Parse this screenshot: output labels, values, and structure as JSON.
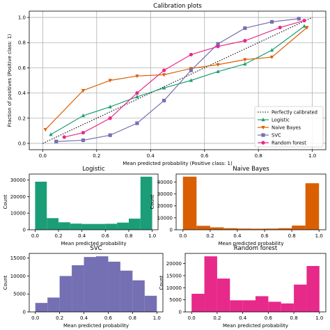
{
  "chart_data": [
    {
      "id": "calibration",
      "type": "line",
      "title": "Calibration plots",
      "xlabel": "Mean predicted probability (Positive class: 1)",
      "ylabel": "Fraction of positives (Positive class: 1)",
      "xlim": [
        -0.05,
        1.05
      ],
      "ylim": [
        -0.05,
        1.05
      ],
      "xticks": [
        0.0,
        0.2,
        0.4,
        0.6,
        0.8,
        1.0
      ],
      "yticks": [
        0.0,
        0.2,
        0.4,
        0.6,
        0.8,
        1.0
      ],
      "tick_labels_x": [
        "0.0",
        "0.2",
        "0.4",
        "0.6",
        "0.8",
        "1.0"
      ],
      "tick_labels_y": [
        "0.0",
        "0.2",
        "0.4",
        "0.6",
        "0.8",
        "1.0"
      ],
      "grid": true,
      "legend_position": "lower-right",
      "reference": {
        "name": "Perfectly calibrated",
        "color": "#000000",
        "x": [
          0,
          1
        ],
        "y": [
          0,
          1
        ]
      },
      "series": [
        {
          "name": "Logistic",
          "color": "#1b9e77",
          "marker": "triangle",
          "x": [
            0.03,
            0.15,
            0.25,
            0.35,
            0.45,
            0.55,
            0.65,
            0.75,
            0.85,
            0.97
          ],
          "y": [
            0.07,
            0.22,
            0.29,
            0.37,
            0.44,
            0.5,
            0.57,
            0.63,
            0.74,
            0.93
          ]
        },
        {
          "name": "Naive Bayes",
          "color": "#d95f02",
          "marker": "triangle-down",
          "x": [
            0.01,
            0.15,
            0.25,
            0.35,
            0.45,
            0.55,
            0.65,
            0.75,
            0.85,
            0.98
          ],
          "y": [
            0.11,
            0.42,
            0.5,
            0.535,
            0.545,
            0.595,
            0.625,
            0.665,
            0.685,
            0.92
          ]
        },
        {
          "name": "SVC",
          "color": "#7570b3",
          "marker": "square",
          "x": [
            0.05,
            0.15,
            0.25,
            0.35,
            0.45,
            0.55,
            0.65,
            0.75,
            0.85,
            0.95
          ],
          "y": [
            0.015,
            0.025,
            0.065,
            0.16,
            0.34,
            0.58,
            0.79,
            0.915,
            0.965,
            0.99
          ]
        },
        {
          "name": "Random forest",
          "color": "#e7298a",
          "marker": "circle",
          "x": [
            0.08,
            0.15,
            0.25,
            0.35,
            0.45,
            0.55,
            0.65,
            0.75,
            0.88,
            0.97
          ],
          "y": [
            0.05,
            0.085,
            0.2,
            0.4,
            0.58,
            0.705,
            0.77,
            0.815,
            0.92,
            0.975
          ]
        }
      ]
    },
    {
      "id": "hist_logistic",
      "type": "bar",
      "title": "Logistic",
      "xlabel": "Mean predicted probability",
      "ylabel": "Count",
      "color": "#1b9e77",
      "bin_edges": [
        0.0,
        0.1,
        0.2,
        0.3,
        0.4,
        0.5,
        0.6,
        0.7,
        0.8,
        0.9,
        1.0
      ],
      "values": [
        29000,
        7000,
        4500,
        3700,
        3500,
        3500,
        3600,
        4300,
        6700,
        32000
      ],
      "xlim": [
        -0.05,
        1.05
      ],
      "ylim": [
        0,
        33600
      ],
      "xticks": [
        0.0,
        0.2,
        0.4,
        0.6,
        0.8,
        1.0
      ],
      "tick_labels_x": [
        "0.0",
        "0.2",
        "0.4",
        "0.6",
        "0.8",
        "1.0"
      ],
      "yticks": [
        0,
        10000,
        20000,
        30000
      ],
      "tick_labels_y": [
        "0",
        "10000",
        "20000",
        "30000"
      ]
    },
    {
      "id": "hist_nb",
      "type": "bar",
      "title": "Naive Bayes",
      "xlabel": "Mean predicted probability",
      "ylabel": "Count",
      "color": "#d95f02",
      "bin_edges": [
        0.0,
        0.1,
        0.2,
        0.3,
        0.4,
        0.5,
        0.6,
        0.7,
        0.8,
        0.9,
        1.0
      ],
      "values": [
        44500,
        3300,
        2000,
        1300,
        1000,
        900,
        1000,
        1300,
        3500,
        39000
      ],
      "xlim": [
        -0.05,
        1.05
      ],
      "ylim": [
        0,
        46700
      ],
      "xticks": [
        0.0,
        0.2,
        0.4,
        0.6,
        0.8,
        1.0
      ],
      "tick_labels_x": [
        "0.0",
        "0.2",
        "0.4",
        "0.6",
        "0.8",
        "1.0"
      ],
      "yticks": [
        0,
        10000,
        20000,
        30000,
        40000
      ],
      "tick_labels_y": [
        "0",
        "10000",
        "20000",
        "30000",
        "40000"
      ]
    },
    {
      "id": "hist_svc",
      "type": "bar",
      "title": "SVC",
      "xlabel": "Mean predicted probability",
      "ylabel": "Count",
      "color": "#7570b3",
      "bin_edges": [
        0.0,
        0.1,
        0.2,
        0.3,
        0.4,
        0.5,
        0.6,
        0.7,
        0.8,
        0.9,
        1.0
      ],
      "values": [
        2500,
        4000,
        10000,
        13000,
        15300,
        15500,
        14000,
        11500,
        8800,
        4500
      ],
      "xlim": [
        -0.05,
        1.05
      ],
      "ylim": [
        0,
        16300
      ],
      "xticks": [
        0.0,
        0.2,
        0.4,
        0.6,
        0.8,
        1.0
      ],
      "tick_labels_x": [
        "0.0",
        "0.2",
        "0.4",
        "0.6",
        "0.8",
        "1.0"
      ],
      "yticks": [
        0,
        5000,
        10000,
        15000
      ],
      "tick_labels_y": [
        "0",
        "5000",
        "10000",
        "15000"
      ]
    },
    {
      "id": "hist_rf",
      "type": "bar",
      "title": "Random forest",
      "xlabel": "Mean predicted probability",
      "ylabel": "Count",
      "color": "#e7298a",
      "bin_edges": [
        0.0,
        0.1,
        0.2,
        0.3,
        0.4,
        0.5,
        0.6,
        0.7,
        0.8,
        0.9,
        1.0
      ],
      "values": [
        7500,
        23000,
        13800,
        4800,
        4800,
        6500,
        4200,
        3500,
        11300,
        19000
      ],
      "xlim": [
        -0.05,
        1.05
      ],
      "ylim": [
        0,
        24200
      ],
      "xticks": [
        0.0,
        0.2,
        0.4,
        0.6,
        0.8,
        1.0
      ],
      "tick_labels_x": [
        "0.0",
        "0.2",
        "0.4",
        "0.6",
        "0.8",
        "1.0"
      ],
      "yticks": [
        0,
        5000,
        10000,
        15000,
        20000
      ],
      "tick_labels_y": [
        "0",
        "5000",
        "10000",
        "15000",
        "20000"
      ]
    }
  ]
}
